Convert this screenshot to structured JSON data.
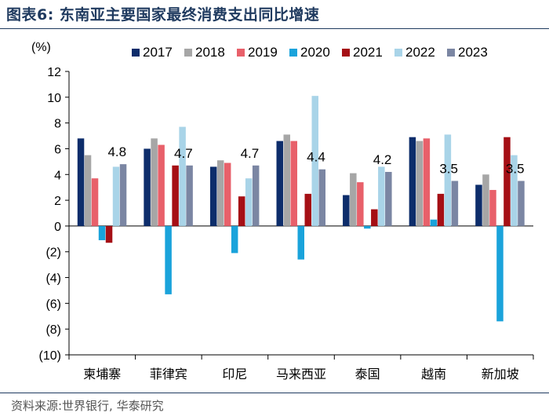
{
  "header": {
    "title": "图表6:  东南亚主要国家最终消费支出同比增速"
  },
  "footer": {
    "source": "资料来源:世界银行, 华泰研究"
  },
  "chart_data": {
    "type": "bar",
    "title": "东南亚主要国家最终消费支出同比增速",
    "ylabel": "(%)",
    "xlabel": "",
    "ylim": [
      -10,
      12
    ],
    "yticks": [
      12,
      10,
      8,
      6,
      4,
      2,
      0,
      -2,
      -4,
      -6,
      -8,
      -10
    ],
    "ytick_labels": [
      "12",
      "10",
      "8",
      "6",
      "4",
      "2",
      "0",
      "(2)",
      "(4)",
      "(6)",
      "(8)",
      "(10)"
    ],
    "categories": [
      "柬埔寨",
      "菲律宾",
      "印尼",
      "马来西亚",
      "泰国",
      "越南",
      "新加坡"
    ],
    "series": [
      {
        "name": "2017",
        "color": "#0d2d6b",
        "values": [
          6.8,
          6.0,
          4.6,
          6.6,
          2.4,
          6.9,
          3.2
        ]
      },
      {
        "name": "2018",
        "color": "#a6a6a6",
        "values": [
          5.5,
          6.8,
          5.1,
          7.1,
          4.1,
          6.6,
          4.0
        ]
      },
      {
        "name": "2019",
        "color": "#e8606a",
        "values": [
          3.7,
          6.3,
          4.9,
          6.6,
          3.4,
          6.8,
          2.8
        ]
      },
      {
        "name": "2020",
        "color": "#1aa3db",
        "values": [
          -1.1,
          -5.3,
          -2.1,
          -2.6,
          -0.2,
          0.5,
          -7.4
        ]
      },
      {
        "name": "2021",
        "color": "#a50f15",
        "values": [
          -1.3,
          4.7,
          2.3,
          2.5,
          1.3,
          2.5,
          6.9
        ]
      },
      {
        "name": "2022",
        "color": "#a9d4e8",
        "values": [
          4.6,
          7.7,
          3.7,
          10.1,
          4.6,
          7.1,
          5.5
        ]
      },
      {
        "name": "2023",
        "color": "#7b86a3",
        "values": [
          4.8,
          4.7,
          4.7,
          4.4,
          4.2,
          3.5,
          3.5
        ]
      }
    ],
    "annotations": [
      "4.8",
      "4.7",
      "4.7",
      "4.4",
      "4.2",
      "3.5",
      "3.5"
    ],
    "legend": "top",
    "grid": false
  }
}
